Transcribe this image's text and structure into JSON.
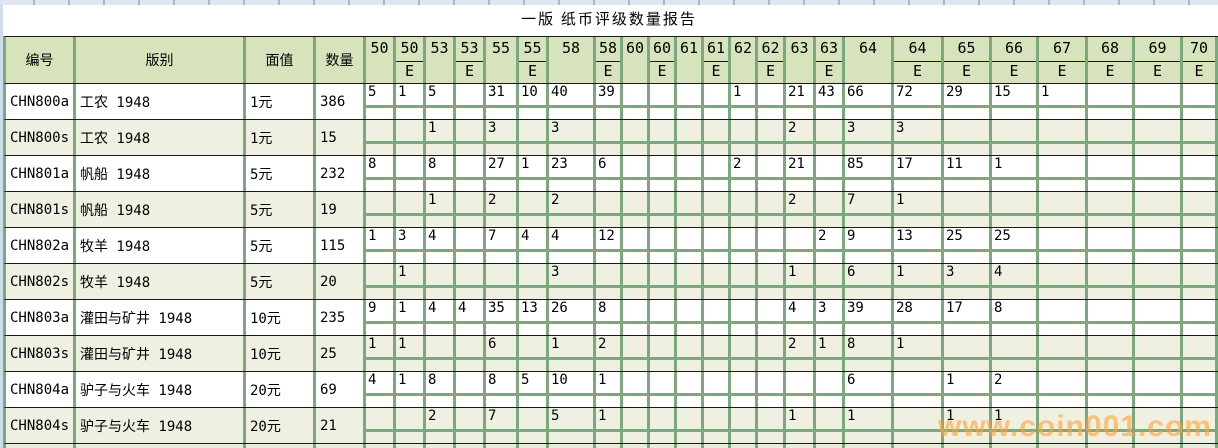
{
  "title": "一版 纸币评级数量报告",
  "watermark": "www.coin001.com",
  "table": {
    "left_headers": [
      "编号",
      "版别",
      "面值",
      "数量"
    ],
    "e_label": "E",
    "grade_columns": [
      {
        "key": "50",
        "label": "50",
        "e": false
      },
      {
        "key": "50E",
        "label": "50",
        "e": true
      },
      {
        "key": "53",
        "label": "53",
        "e": false
      },
      {
        "key": "53E",
        "label": "53",
        "e": true
      },
      {
        "key": "55",
        "label": "55",
        "e": false
      },
      {
        "key": "55E",
        "label": "55",
        "e": true
      },
      {
        "key": "58",
        "label": "58",
        "e": false
      },
      {
        "key": "58E",
        "label": "58",
        "e": true
      },
      {
        "key": "60",
        "label": "60",
        "e": false
      },
      {
        "key": "60E",
        "label": "60",
        "e": true
      },
      {
        "key": "61",
        "label": "61",
        "e": false
      },
      {
        "key": "61E",
        "label": "61",
        "e": true
      },
      {
        "key": "62",
        "label": "62",
        "e": false
      },
      {
        "key": "62E",
        "label": "62",
        "e": true
      },
      {
        "key": "63",
        "label": "63",
        "e": false
      },
      {
        "key": "63E",
        "label": "63",
        "e": true
      },
      {
        "key": "64",
        "label": "64",
        "e": false
      },
      {
        "key": "64E",
        "label": "64",
        "e": true
      },
      {
        "key": "65E",
        "label": "65",
        "e": true
      },
      {
        "key": "66E",
        "label": "66",
        "e": true
      },
      {
        "key": "67E",
        "label": "67",
        "e": true
      },
      {
        "key": "68E",
        "label": "68",
        "e": true
      },
      {
        "key": "69E",
        "label": "69",
        "e": true
      },
      {
        "key": "70E",
        "label": "70",
        "e": true
      }
    ],
    "rows": [
      {
        "code": "CHN800a",
        "name": "工农 1948",
        "denom": "1元",
        "qty": "386",
        "grades": {
          "50": "5",
          "50E": "1",
          "53": "5",
          "55": "31",
          "55E": "10",
          "58": "40",
          "58E": "39",
          "62": "1",
          "63": "21",
          "63E": "43",
          "64": "66",
          "64E": "72",
          "65E": "29",
          "66E": "15",
          "67E": "1"
        }
      },
      {
        "code": "CHN800s",
        "name": "工农 1948",
        "denom": "1元",
        "qty": "15",
        "grades": {
          "53": "1",
          "55": "3",
          "58": "3",
          "63": "2",
          "64": "3",
          "64E": "3"
        }
      },
      {
        "code": "CHN801a",
        "name": "帆船 1948",
        "denom": "5元",
        "qty": "232",
        "grades": {
          "50": "8",
          "53": "8",
          "55": "27",
          "55E": "1",
          "58": "23",
          "58E": "6",
          "62": "2",
          "63": "21",
          "64": "85",
          "64E": "17",
          "65E": "11",
          "66E": "1"
        }
      },
      {
        "code": "CHN801s",
        "name": "帆船 1948",
        "denom": "5元",
        "qty": "19",
        "grades": {
          "53": "1",
          "55": "2",
          "58": "2",
          "63": "2",
          "64": "7",
          "64E": "1"
        }
      },
      {
        "code": "CHN802a",
        "name": "牧羊 1948",
        "denom": "5元",
        "qty": "115",
        "grades": {
          "50": "1",
          "50E": "3",
          "53": "4",
          "55": "7",
          "55E": "4",
          "58": "4",
          "58E": "12",
          "63E": "2",
          "64": "9",
          "64E": "13",
          "65E": "25",
          "66E": "25"
        }
      },
      {
        "code": "CHN802s",
        "name": "牧羊 1948",
        "denom": "5元",
        "qty": "20",
        "grades": {
          "50E": "1",
          "58": "3",
          "63": "1",
          "64": "6",
          "64E": "1",
          "65E": "3",
          "66E": "4"
        }
      },
      {
        "code": "CHN803a",
        "name": "灌田与矿井 1948",
        "denom": "10元",
        "qty": "235",
        "grades": {
          "50": "9",
          "50E": "1",
          "53": "4",
          "53E": "4",
          "55": "35",
          "55E": "13",
          "58": "26",
          "58E": "8",
          "63": "4",
          "63E": "3",
          "64": "39",
          "64E": "28",
          "65E": "17",
          "66E": "8"
        }
      },
      {
        "code": "CHN803s",
        "name": "灌田与矿井 1948",
        "denom": "10元",
        "qty": "25",
        "grades": {
          "50": "1",
          "50E": "1",
          "55": "6",
          "58": "1",
          "58E": "2",
          "63": "2",
          "63E": "1",
          "64": "8",
          "64E": "1"
        }
      },
      {
        "code": "CHN804a",
        "name": "驴子与火车 1948",
        "denom": "20元",
        "qty": "69",
        "grades": {
          "50": "4",
          "50E": "1",
          "53": "8",
          "55": "8",
          "55E": "5",
          "58": "10",
          "58E": "1",
          "64": "6",
          "65E": "1",
          "66E": "2"
        }
      },
      {
        "code": "CHN804s",
        "name": "驴子与火车 1948",
        "denom": "20元",
        "qty": "21",
        "grades": {
          "53": "2",
          "55": "7",
          "58": "5",
          "58E": "1",
          "63": "1",
          "64": "1",
          "65E": "1",
          "66E": "1"
        }
      }
    ]
  },
  "colors": {
    "grid_green": "#7da87d",
    "header_bg": "#d7e3bd",
    "row_alt_bg": "#efefe2",
    "row_bg": "#ffffff",
    "separator": "#1a1a1a",
    "watermark": "#ffa336",
    "top_strip": "#dde6f1"
  }
}
